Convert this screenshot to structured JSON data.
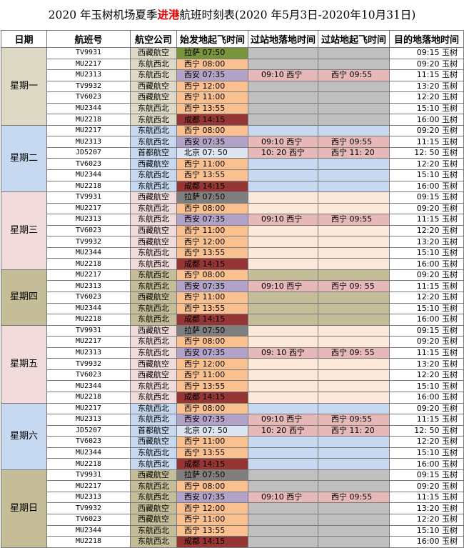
{
  "title": {
    "pre": "2020 年玉树机场夏季",
    "highlight": "进港",
    "post": "航班时刻表(2020 年5月3日-2020年10月31日)"
  },
  "headers": [
    "日期",
    "航班号",
    "航空公司",
    "始发地起飞时间",
    "过站地落地时间",
    "过站地起飞时间",
    "目的地落地时间"
  ],
  "colors": {
    "origin": {
      "lasa": "#77933c",
      "xining": "#fac090",
      "xian": "#b3a2c7",
      "beijing": "#dce6f2",
      "chengdu": "#963634"
    },
    "stopover": "#e6b9b8",
    "day_blocks": {
      "tan": "#ddd9c4",
      "blue": "#c6d9f1",
      "pink": "#f2dcdb",
      "olive": "#c4bd97"
    },
    "tan_empty": "#bfbfbf"
  },
  "days": [
    {
      "label": "星期一",
      "bg": "#ddd9c4",
      "empty": "#bfbfbf",
      "rows": [
        {
          "flight": "TV9931",
          "airline": "西藏航空",
          "origin": "拉萨 07:50",
          "ok": "lasa",
          "stop_arr": "",
          "stop_dep": "",
          "dest": "09:15 玉树"
        },
        {
          "flight": "MU2217",
          "airline": "东航西北",
          "origin": "西宁 08:00",
          "ok": "xining",
          "stop_arr": "",
          "stop_dep": "",
          "dest": "09:20 玉树"
        },
        {
          "flight": "MU2313",
          "airline": "东航西北",
          "origin": "西安 07:35",
          "ok": "xian",
          "stop_arr": "09:10 西宁",
          "stop_dep": "西宁 09:55",
          "dest": "11:15 玉树"
        },
        {
          "flight": "TV9932",
          "airline": "西藏航空",
          "origin": "西宁 12:00",
          "ok": "xining",
          "stop_arr": "",
          "stop_dep": "",
          "dest": "13:20 玉树"
        },
        {
          "flight": "TV6023",
          "airline": "西藏航空",
          "origin": "西宁 11:00",
          "ok": "xining",
          "stop_arr": "",
          "stop_dep": "",
          "dest": "12:20 玉树"
        },
        {
          "flight": "MU2344",
          "airline": "东航西北",
          "origin": "西宁 13:55",
          "ok": "xining",
          "stop_arr": "",
          "stop_dep": "",
          "dest": "15:10 玉树"
        },
        {
          "flight": "MU2218",
          "airline": "东航西北",
          "origin": "成都 14:15",
          "ok": "chengdu",
          "stop_arr": "",
          "stop_dep": "",
          "dest": "16:00 玉树"
        }
      ]
    },
    {
      "label": "星期二",
      "bg": "#c6d9f1",
      "empty": "#c6d9f1",
      "rows": [
        {
          "flight": "MU2217",
          "airline": "东航西北",
          "origin": "西宁 08:00",
          "ok": "xining",
          "stop_arr": "",
          "stop_dep": "",
          "dest": "09:20 玉树"
        },
        {
          "flight": "MU2313",
          "airline": "东航西北",
          "origin": "西安 07:35",
          "ok": "xian",
          "stop_arr": "09:10 西宁",
          "stop_dep": "西宁 09:55",
          "dest": "11:15 玉树"
        },
        {
          "flight": "JD5207",
          "airline": "首都航空",
          "origin": "北京 07: 50",
          "ok": "beijing",
          "stop_arr": "10: 20 西宁",
          "stop_dep": "西宁 11: 20",
          "dest": "12: 50 玉树"
        },
        {
          "flight": "TV6023",
          "airline": "西藏航空",
          "origin": "西宁 11:00",
          "ok": "xining",
          "stop_arr": "",
          "stop_dep": "",
          "dest": "12:20 玉树"
        },
        {
          "flight": "MU2344",
          "airline": "东航西北",
          "origin": "西宁 13:55",
          "ok": "xining",
          "stop_arr": "",
          "stop_dep": "",
          "dest": "15:10 玉树"
        },
        {
          "flight": "MU2218",
          "airline": "东航西北",
          "origin": "成都 14:15",
          "ok": "chengdu",
          "stop_arr": "",
          "stop_dep": "",
          "dest": "16:00 玉树"
        }
      ]
    },
    {
      "label": "星期三",
      "bg": "#f2dcdb",
      "empty": "#fde9d9",
      "rows": [
        {
          "flight": "TV9931",
          "airline": "西藏航空",
          "origin": "拉萨 07:50",
          "ok": "lasa_grey",
          "stop_arr": "",
          "stop_dep": "",
          "dest": "09:15 玉树"
        },
        {
          "flight": "MU2217",
          "airline": "东航西北",
          "origin": "西宁 08:00",
          "ok": "xining",
          "stop_arr": "",
          "stop_dep": "",
          "dest": "09:20 玉树"
        },
        {
          "flight": "MU2313",
          "airline": "东航西北",
          "origin": "西安 07:35",
          "ok": "xian",
          "stop_arr": "09:10 西宁",
          "stop_dep": "西宁 09:55",
          "dest": "11:15 玉树"
        },
        {
          "flight": "TV6023",
          "airline": "西藏航空",
          "origin": "西宁 11:00",
          "ok": "xining",
          "stop_arr": "",
          "stop_dep": "",
          "dest": "12:20 玉树"
        },
        {
          "flight": "TV9932",
          "airline": "西藏航空",
          "origin": "西宁 12:00",
          "ok": "xining",
          "stop_arr": "",
          "stop_dep": "",
          "dest": "13:20 玉树"
        },
        {
          "flight": "MU2344",
          "airline": "东航西北",
          "origin": "西宁 13:55",
          "ok": "xining",
          "stop_arr": "",
          "stop_dep": "",
          "dest": "15:10 玉树"
        },
        {
          "flight": "MU2218",
          "airline": "东航西北",
          "origin": "成都 14:15",
          "ok": "chengdu",
          "stop_arr": "",
          "stop_dep": "",
          "dest": "16:00 玉树"
        }
      ]
    },
    {
      "label": "星期四",
      "bg": "#c4bd97",
      "empty": "#c4bd97",
      "rows": [
        {
          "flight": "MU2217",
          "airline": "东航西北",
          "origin": "西宁 08:00",
          "ok": "xining",
          "stop_arr": "",
          "stop_dep": "",
          "dest": "09:20 玉树"
        },
        {
          "flight": "MU2313",
          "airline": "东航西北",
          "origin": "西安 07:35",
          "ok": "xian",
          "stop_arr": "09:10 西宁",
          "stop_dep": "西宁 09: 55",
          "dest": "11:15 玉树"
        },
        {
          "flight": "TV6023",
          "airline": "西藏航空",
          "origin": "西宁 11:00",
          "ok": "xining",
          "stop_arr": "",
          "stop_dep": "",
          "dest": "12:20 玉树"
        },
        {
          "flight": "MU2344",
          "airline": "东航西北",
          "origin": "西宁 13:55",
          "ok": "xining",
          "stop_arr": "",
          "stop_dep": "",
          "dest": "15:10 玉树"
        },
        {
          "flight": "MU2218",
          "airline": "东航西北",
          "origin": "成都 14:15",
          "ok": "chengdu",
          "stop_arr": "",
          "stop_dep": "",
          "dest": "16:00 玉树"
        }
      ]
    },
    {
      "label": "星期五",
      "bg": "#f2dcdb",
      "empty": "#fde9d9",
      "rows": [
        {
          "flight": "TV9931",
          "airline": "西藏航空",
          "origin": "拉萨 07:50",
          "ok": "lasa_grey",
          "stop_arr": "",
          "stop_dep": "",
          "dest": "09:15 玉树"
        },
        {
          "flight": "MU2217",
          "airline": "东航西北",
          "origin": "西宁 08:00",
          "ok": "xining",
          "stop_arr": "",
          "stop_dep": "",
          "dest": "09:20 玉树"
        },
        {
          "flight": "MU2313",
          "airline": "东航西北",
          "origin": "西安 07:35",
          "ok": "xian",
          "stop_arr": "09: 10 西宁",
          "stop_dep": "西宁 09: 55",
          "dest": "11:15 玉树"
        },
        {
          "flight": "TV9932",
          "airline": "西藏航空",
          "origin": "西宁 12:00",
          "ok": "xining",
          "stop_arr": "",
          "stop_dep": "",
          "dest": "13:20 玉树"
        },
        {
          "flight": "TV6023",
          "airline": "西藏航空",
          "origin": "西宁 11:00",
          "ok": "xining",
          "stop_arr": "",
          "stop_dep": "",
          "dest": "12:20 玉树"
        },
        {
          "flight": "MU2344",
          "airline": "东航西北",
          "origin": "西宁 13:55",
          "ok": "xining",
          "stop_arr": "",
          "stop_dep": "",
          "dest": "15:10 玉树"
        },
        {
          "flight": "MU2218",
          "airline": "东航西北",
          "origin": "成都 14:15",
          "ok": "chengdu",
          "stop_arr": "",
          "stop_dep": "",
          "dest": "16:00 玉树"
        }
      ]
    },
    {
      "label": "星期六",
      "bg": "#c6d9f1",
      "empty": "#c6d9f1",
      "rows": [
        {
          "flight": "MU2217",
          "airline": "东航西北",
          "origin": "西宁 08:00",
          "ok": "xining",
          "stop_arr": "",
          "stop_dep": "",
          "dest": "09:20 玉树"
        },
        {
          "flight": "MU2313",
          "airline": "东航西北",
          "origin": "西安 07:35",
          "ok": "xian",
          "stop_arr": "09:10 西宁",
          "stop_dep": "西宁 09:55",
          "dest": "11:15 玉树"
        },
        {
          "flight": "JD5207",
          "airline": "首都航空",
          "origin": "北京 07: 50",
          "ok": "beijing",
          "stop_arr": "10: 20 西宁",
          "stop_dep": "西宁 11: 20",
          "dest": "12: 50 玉树"
        },
        {
          "flight": "TV6023",
          "airline": "西藏航空",
          "origin": "西宁 11:00",
          "ok": "xining",
          "stop_arr": "",
          "stop_dep": "",
          "dest": "12:20 玉树"
        },
        {
          "flight": "MU2344",
          "airline": "东航西北",
          "origin": "西宁 13:55",
          "ok": "xining",
          "stop_arr": "",
          "stop_dep": "",
          "dest": "15:10 玉树"
        },
        {
          "flight": "MU2218",
          "airline": "东航西北",
          "origin": "成都 14:15",
          "ok": "chengdu",
          "stop_arr": "",
          "stop_dep": "",
          "dest": "16:00 玉树"
        }
      ]
    },
    {
      "label": "星期日",
      "bg": "#c4bd97",
      "empty": "#bfbfbf",
      "rows": [
        {
          "flight": "TV9931",
          "airline": "西藏航空",
          "origin": "拉萨 07:50",
          "ok": "lasa_grey",
          "stop_arr": "",
          "stop_dep": "",
          "dest": "09:15 玉树"
        },
        {
          "flight": "MU2217",
          "airline": "东航西北",
          "origin": "西宁 08:00",
          "ok": "xining",
          "stop_arr": "",
          "stop_dep": "",
          "dest": "09:20 玉树"
        },
        {
          "flight": "MU2313",
          "airline": "东航西北",
          "origin": "西安 07:35",
          "ok": "xian",
          "stop_arr": "09:10 西宁",
          "stop_dep": "西宁 09:55",
          "dest": "11:15 玉树"
        },
        {
          "flight": "TV9932",
          "airline": "西藏航空",
          "origin": "西宁 12:00",
          "ok": "xining",
          "stop_arr": "",
          "stop_dep": "",
          "dest": "13:20 玉树"
        },
        {
          "flight": "TV6023",
          "airline": "西藏航空",
          "origin": "西宁 11:00",
          "ok": "xining",
          "stop_arr": "",
          "stop_dep": "",
          "dest": "12:20 玉树"
        },
        {
          "flight": "MU2344",
          "airline": "东航西北",
          "origin": "西宁 13:55",
          "ok": "xining",
          "stop_arr": "",
          "stop_dep": "",
          "dest": "15:10 玉树"
        },
        {
          "flight": "MU2218",
          "airline": "东航西北",
          "origin": "成都 14:15",
          "ok": "chengdu",
          "stop_arr": "",
          "stop_dep": "",
          "dest": "16:00 玉树"
        }
      ]
    }
  ]
}
